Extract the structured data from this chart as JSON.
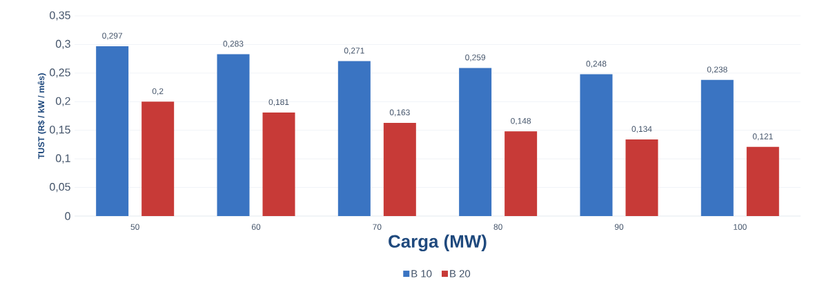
{
  "chart_data": {
    "type": "bar",
    "xlabel": "Carga (MW)",
    "ylabel": "TUST (R$ / kW / mês)",
    "categories": [
      "50",
      "60",
      "70",
      "80",
      "90",
      "100"
    ],
    "series": [
      {
        "name": "B 10",
        "color": "#3a74c2",
        "values": [
          0.297,
          0.283,
          0.271,
          0.259,
          0.248,
          0.238
        ],
        "value_labels": [
          "0,297",
          "0,283",
          "0,271",
          "0,259",
          "0,248",
          "0,238"
        ]
      },
      {
        "name": "B 20",
        "color": "#c73a37",
        "values": [
          0.2,
          0.181,
          0.163,
          0.148,
          0.134,
          0.121
        ],
        "value_labels": [
          "0,2",
          "0,181",
          "0,163",
          "0,148",
          "0,134",
          "0,121"
        ]
      }
    ],
    "ylim": [
      0,
      0.35
    ],
    "yticks": [
      0,
      {
        "value": 0.05,
        "label": "0,05"
      },
      {
        "value": 0.1,
        "label": "0,1"
      },
      {
        "value": 0.15,
        "label": "0,15"
      },
      {
        "value": 0.2,
        "label": "0,2"
      },
      {
        "value": 0.25,
        "label": "0,25"
      },
      {
        "value": 0.3,
        "label": "0,3"
      },
      {
        "value": 0.35,
        "label": "0,35"
      }
    ],
    "grid": "y",
    "legend": "bottom"
  }
}
